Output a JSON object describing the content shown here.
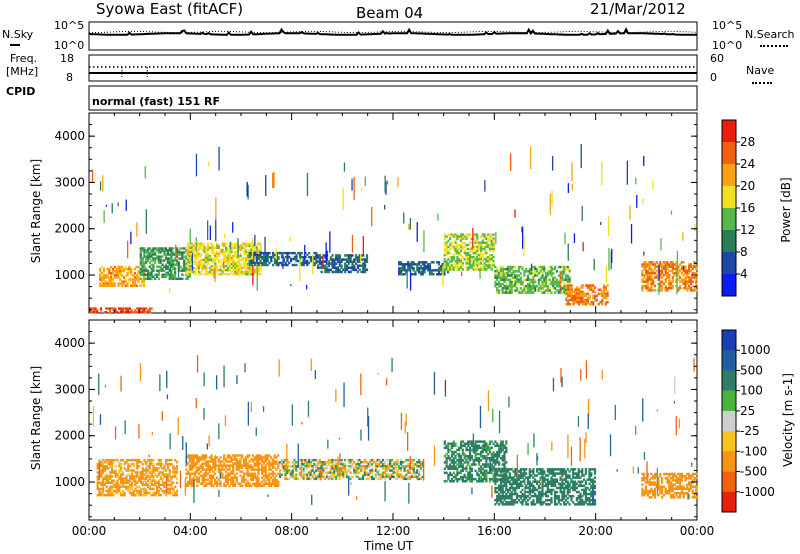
{
  "header": {
    "station": "Syowa East (fitACF)",
    "beam": "Beam 04",
    "date": "21/Mar/2012"
  },
  "noise_panel": {
    "left_label": "N.Sky",
    "right_label": "N.Search",
    "top_tick": "10^5",
    "bottom_tick": "10^0",
    "right_top_tick": "10^5",
    "right_bottom_tick": "10^0"
  },
  "freq_panel": {
    "left_label_1": "Freq.",
    "left_label_2": "[MHz]",
    "left_top_tick": "18",
    "left_bottom_tick": "8",
    "right_label": "Nave",
    "right_top_tick": "60",
    "right_bottom_tick": "0"
  },
  "cpid_panel": {
    "label": "CPID",
    "text": "normal (fast) 151 RF"
  },
  "power_panel": {
    "ylabel": "Slant Range [km]",
    "yticks": [
      "1000",
      "2000",
      "3000",
      "4000"
    ],
    "colorbar_label": "Power [dB]",
    "colorbar_ticks": [
      "4",
      "8",
      "12",
      "16",
      "20",
      "24",
      "28"
    ],
    "colorbar_colors": [
      "#0b1df0",
      "#1d47a8",
      "#2a7e55",
      "#56b84a",
      "#f2df1f",
      "#f7a312",
      "#f2620e",
      "#ea1c0c"
    ]
  },
  "velocity_panel": {
    "ylabel": "Slant Range [km]",
    "yticks": [
      "1000",
      "2000",
      "3000",
      "4000"
    ],
    "colorbar_label": "Velocity [m s-1]",
    "colorbar_ticks": [
      "1000",
      "500",
      "100",
      "25",
      "-25",
      "-100",
      "-500",
      "-1000"
    ],
    "colorbar_colors": [
      "#1a3fb5",
      "#2160a0",
      "#2e7e66",
      "#49b33b",
      "#cfcfcf",
      "#f7c21a",
      "#f79414",
      "#f2620e",
      "#ea1c0c"
    ]
  },
  "x_axis": {
    "label": "Time UT",
    "ticks": [
      "00:00",
      "04:00",
      "08:00",
      "12:00",
      "16:00",
      "20:00",
      "00:00"
    ]
  },
  "chart_data": [
    {
      "type": "heatmap",
      "quantity": "Power",
      "units": "dB",
      "x_range_hours": [
        0,
        24
      ],
      "y_range_km": [
        180,
        4500
      ],
      "color_range": [
        0,
        30
      ],
      "regions": [
        {
          "t_start": 0.0,
          "t_end": 2.5,
          "r_start": 180,
          "r_end": 300,
          "value": 28
        },
        {
          "t_start": 0.4,
          "t_end": 2.2,
          "r_start": 750,
          "r_end": 1200,
          "value": 22
        },
        {
          "t_start": 2.0,
          "t_end": 4.0,
          "r_start": 900,
          "r_end": 1600,
          "value": 12
        },
        {
          "t_start": 3.8,
          "t_end": 6.8,
          "r_start": 1000,
          "r_end": 1700,
          "value": 18
        },
        {
          "t_start": 6.3,
          "t_end": 9.0,
          "r_start": 1200,
          "r_end": 1500,
          "value": 8
        },
        {
          "t_start": 9.0,
          "t_end": 11.0,
          "r_start": 1050,
          "r_end": 1450,
          "value": 8
        },
        {
          "t_start": 12.2,
          "t_end": 14.2,
          "r_start": 1000,
          "r_end": 1300,
          "value": 8
        },
        {
          "t_start": 14.0,
          "t_end": 16.0,
          "r_start": 1100,
          "r_end": 1900,
          "value": 16
        },
        {
          "t_start": 16.0,
          "t_end": 19.0,
          "r_start": 600,
          "r_end": 1200,
          "value": 14
        },
        {
          "t_start": 18.8,
          "t_end": 20.5,
          "r_start": 350,
          "r_end": 800,
          "value": 24
        },
        {
          "t_start": 21.8,
          "t_end": 24.0,
          "r_start": 650,
          "r_end": 1300,
          "value": 24
        }
      ]
    },
    {
      "type": "heatmap",
      "quantity": "Velocity",
      "units": "m s-1",
      "x_range_hours": [
        0,
        24
      ],
      "y_range_km": [
        180,
        4500
      ],
      "color_range": [
        -1000,
        1000
      ],
      "regions": [
        {
          "t_start": 0.3,
          "t_end": 3.5,
          "r_start": 700,
          "r_end": 1500,
          "value": -200
        },
        {
          "t_start": 3.8,
          "t_end": 7.5,
          "r_start": 900,
          "r_end": 1600,
          "value": -300
        },
        {
          "t_start": 7.5,
          "t_end": 13.2,
          "r_start": 1050,
          "r_end": 1500,
          "value": 0
        },
        {
          "t_start": 14.0,
          "t_end": 16.5,
          "r_start": 1000,
          "r_end": 1900,
          "value": 200
        },
        {
          "t_start": 16.0,
          "t_end": 20.0,
          "r_start": 500,
          "r_end": 1300,
          "value": 300
        },
        {
          "t_start": 21.8,
          "t_end": 24.0,
          "r_start": 650,
          "r_end": 1200,
          "value": -300
        }
      ]
    }
  ]
}
